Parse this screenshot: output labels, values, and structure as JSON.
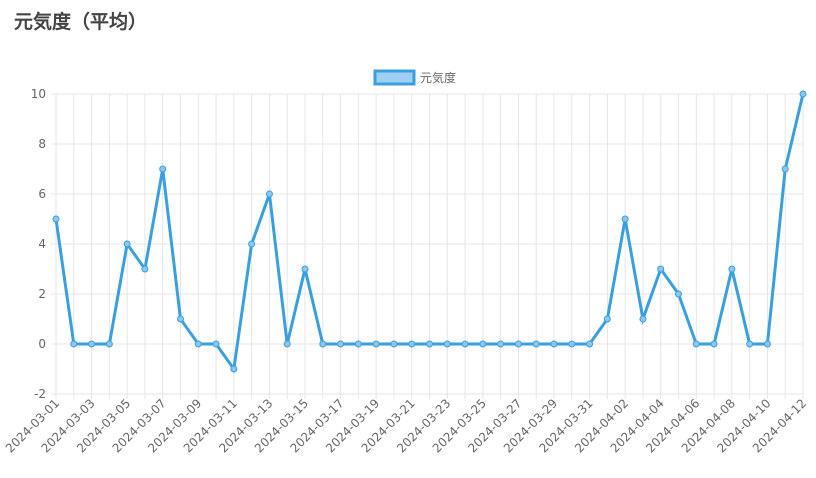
{
  "chart_data": {
    "type": "line",
    "title": "元気度（平均）",
    "categories": [
      "2024-03-01",
      null,
      "2024-03-03",
      null,
      "2024-03-05",
      null,
      "2024-03-07",
      null,
      "2024-03-09",
      null,
      "2024-03-11",
      null,
      "2024-03-13",
      null,
      "2024-03-15",
      null,
      "2024-03-17",
      null,
      "2024-03-19",
      null,
      "2024-03-21",
      null,
      "2024-03-23",
      null,
      "2024-03-25",
      null,
      "2024-03-27",
      null,
      "2024-03-29",
      null,
      "2024-03-31",
      null,
      "2024-04-02",
      null,
      "2024-04-04",
      null,
      "2024-04-06",
      null,
      "2024-04-08",
      null,
      "2024-04-10",
      null,
      "2024-04-12"
    ],
    "series": [
      {
        "name": "元気度",
        "color": "#3a9fde",
        "values": [
          5,
          0,
          0,
          0,
          4,
          3,
          7,
          1,
          0,
          0,
          -1,
          4,
          6,
          0,
          3,
          0,
          0,
          0,
          0,
          0,
          0,
          0,
          0,
          0,
          0,
          0,
          0,
          0,
          0,
          0,
          0,
          1,
          5,
          1,
          3,
          2,
          0,
          0,
          3,
          0,
          0,
          7,
          10
        ]
      }
    ],
    "ylim": [
      -2,
      10
    ],
    "yticks": [
      -2,
      0,
      2,
      4,
      6,
      8,
      10
    ],
    "grid": true,
    "legend": "top"
  }
}
